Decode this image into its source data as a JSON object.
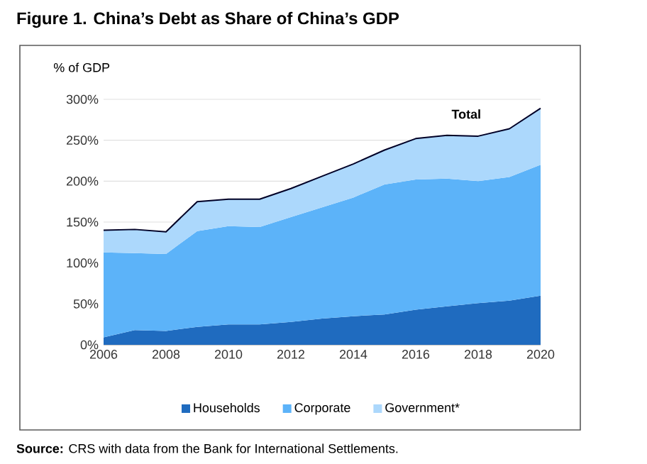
{
  "chart_data": {
    "type": "area",
    "stacked": true,
    "title": "Figure 1. China’s Debt as Share of China’s GDP",
    "ylabel": "% of GDP",
    "x": [
      2006,
      2007,
      2008,
      2009,
      2010,
      2011,
      2012,
      2013,
      2014,
      2015,
      2016,
      2017,
      2018,
      2019,
      2020
    ],
    "series": [
      {
        "name": "Households",
        "color": "#1f6bbf",
        "values": [
          9,
          18,
          17,
          22,
          25,
          25,
          28,
          32,
          35,
          37,
          43,
          47,
          51,
          54,
          60
        ]
      },
      {
        "name": "Corporate",
        "color": "#5cb3f9",
        "values": [
          104,
          94,
          94,
          117,
          120,
          119,
          128,
          136,
          145,
          159,
          159,
          156,
          149,
          151,
          160
        ]
      },
      {
        "name": "Government*",
        "color": "#acd8fc",
        "values": [
          27,
          29,
          27,
          36,
          33,
          34,
          35,
          38,
          41,
          42,
          50,
          53,
          55,
          59,
          69
        ]
      }
    ],
    "xlim": [
      2006,
      2020
    ],
    "xticks": [
      2006,
      2008,
      2010,
      2012,
      2014,
      2016,
      2018,
      2020
    ],
    "ylim": [
      0,
      300
    ],
    "yticks": [
      {
        "value": 0,
        "label": "0%"
      },
      {
        "value": 50,
        "label": "50%"
      },
      {
        "value": 100,
        "label": "100%"
      },
      {
        "value": 150,
        "label": "150%"
      },
      {
        "value": 200,
        "label": "200%"
      },
      {
        "value": 250,
        "label": "250%"
      },
      {
        "value": 300,
        "label": "300%"
      }
    ],
    "grid": "y",
    "legend": "bottom",
    "annotations": [
      "Total",
      "**Source:** CRS with data from the Bank for International Settlements."
    ]
  }
}
